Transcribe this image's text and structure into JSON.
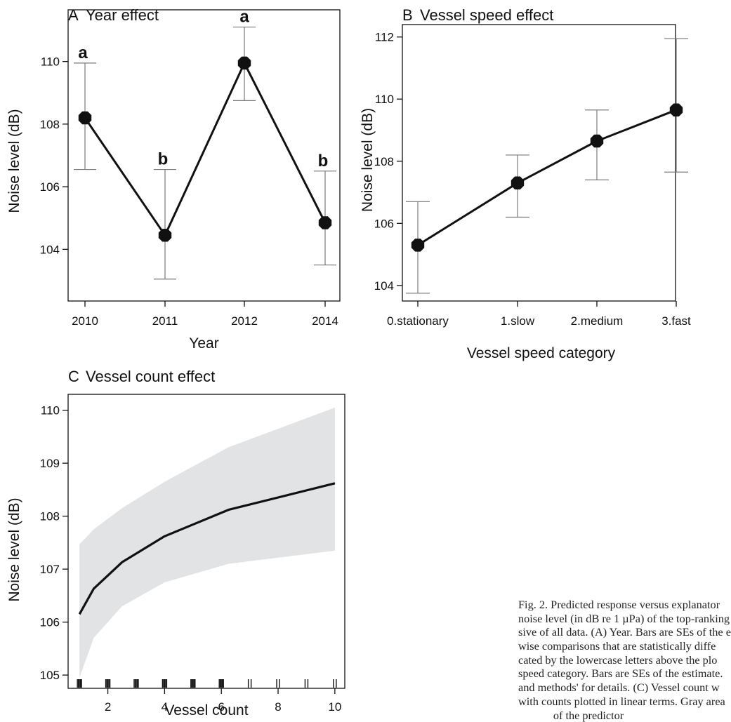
{
  "chart_data": [
    {
      "panel": "A",
      "type": "line",
      "title": "Year effect",
      "xlabel": "Year",
      "ylabel": "Noise level (dB)",
      "categories": [
        "2010",
        "2011",
        "2012",
        "2014"
      ],
      "values": [
        108.2,
        104.45,
        109.95,
        104.85
      ],
      "lower": [
        106.55,
        103.05,
        108.75,
        103.5
      ],
      "upper": [
        109.95,
        106.55,
        111.1,
        106.5
      ],
      "significance_letters": [
        "a",
        "b",
        "a",
        "b"
      ],
      "yticks": [
        104,
        106,
        108,
        110
      ],
      "ylim": [
        102.35,
        111.65
      ]
    },
    {
      "panel": "B",
      "type": "line",
      "title": "Vessel speed effect",
      "xlabel": "Vessel speed category",
      "ylabel": "Noise level (dB)",
      "categories": [
        "0.stationary",
        "1.slow",
        "2.medium",
        "3.fast"
      ],
      "values": [
        105.3,
        107.3,
        108.65,
        109.65
      ],
      "lower": [
        103.75,
        106.2,
        107.4,
        107.65
      ],
      "upper": [
        106.7,
        108.2,
        109.65,
        111.95
      ],
      "yticks": [
        104,
        106,
        108,
        110,
        112
      ],
      "ylim": [
        103.5,
        112.4
      ]
    },
    {
      "panel": "C",
      "type": "area",
      "title": "Vessel count effect",
      "xlabel": "Vessel count",
      "ylabel": "Noise level (dB)",
      "x": [
        1,
        1.5,
        2.5,
        4,
        6.25,
        10
      ],
      "values": [
        106.15,
        106.63,
        107.13,
        107.62,
        108.12,
        108.62
      ],
      "lower": [
        104.95,
        105.7,
        106.3,
        106.75,
        107.1,
        107.35
      ],
      "upper": [
        107.47,
        107.75,
        108.15,
        108.65,
        109.3,
        110.05
      ],
      "rug": [
        1,
        2,
        3,
        4,
        5,
        6,
        7,
        8,
        9,
        10
      ],
      "xticks": [
        2,
        4,
        6,
        8,
        10
      ],
      "yticks": [
        105,
        106,
        107,
        108,
        109,
        110
      ],
      "xlim": [
        0.6,
        10.35
      ],
      "ylim": [
        104.75,
        110.3
      ],
      "band_color": "#e2e3e5"
    }
  ],
  "caption_lines": [
    "Fig. 2. Predicted response versus explanator",
    "noise level (in dB re 1 µPa) of the top-ranking",
    "sive of all data. (A) Year. Bars are SEs of the e",
    "wise comparisons that are statistically diffe",
    "cated by the lowercase letters above the plo",
    "speed category. Bars are SEs of the estimate.",
    "and methods' for details. (C) Vessel count w",
    "with counts plotted in linear terms. Gray area",
    "of the predictor"
  ],
  "colors": {
    "line": "#111111",
    "errorbar": "#7a7a7a",
    "band": "#e2e3e5",
    "axis": "#111111"
  }
}
